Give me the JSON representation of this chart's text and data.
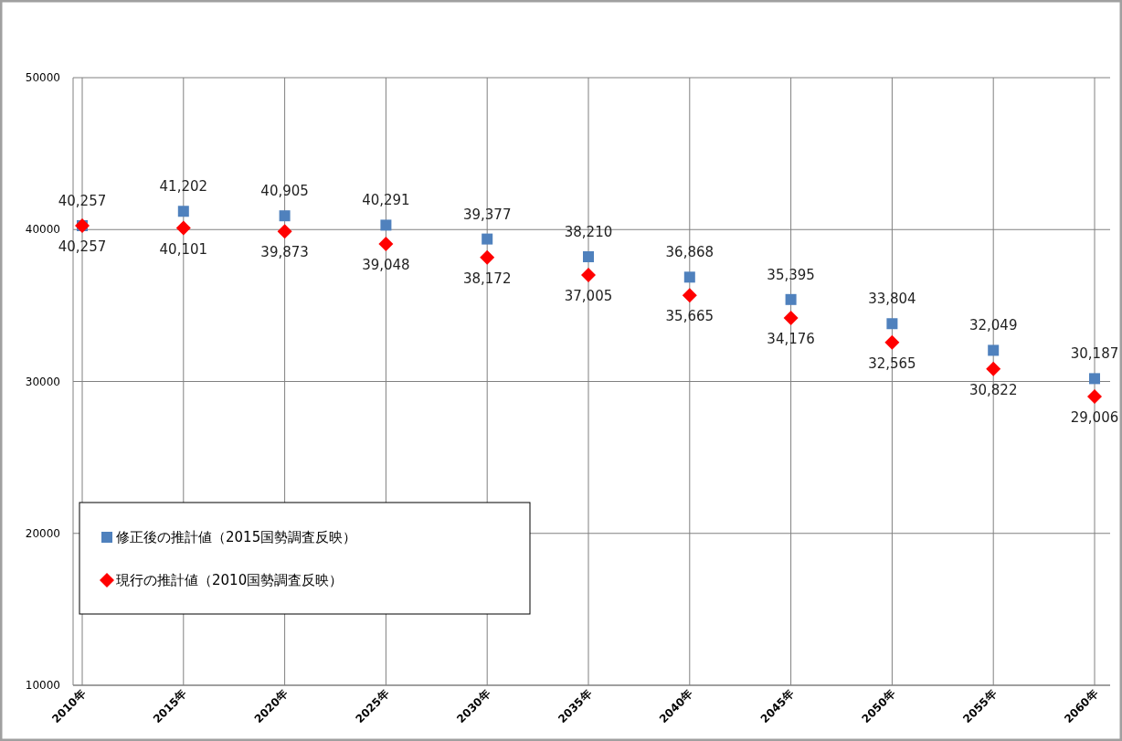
{
  "chart_data": {
    "type": "scatter",
    "categories": [
      "2010年",
      "2015年",
      "2020年",
      "2025年",
      "2030年",
      "2035年",
      "2040年",
      "2045年",
      "2050年",
      "2055年",
      "2060年"
    ],
    "series": [
      {
        "name": "修正後の推計値（2015国勢調査反映）",
        "color": "#4f81bd",
        "marker": "square",
        "values": [
          40257,
          41202,
          40905,
          40291,
          39377,
          38210,
          36868,
          35395,
          33804,
          32049,
          30187
        ],
        "value_labels": [
          "40,257",
          "41,202",
          "40,905",
          "40,291",
          "39,377",
          "38,210",
          "36,868",
          "35,395",
          "33,804",
          "32,049",
          "30,187"
        ]
      },
      {
        "name": "現行の推計値（2010国勢調査反映）",
        "color": "#ff0000",
        "marker": "diamond",
        "values": [
          40257,
          40101,
          39873,
          39048,
          38172,
          37005,
          35665,
          34176,
          32565,
          30822,
          29006
        ],
        "value_labels": [
          "40,257",
          "40,101",
          "39,873",
          "39,048",
          "38,172",
          "37,005",
          "35,665",
          "34,176",
          "32,565",
          "30,822",
          "29,006"
        ]
      }
    ],
    "ylim": [
      10000,
      50000
    ],
    "yticks": [
      10000,
      20000,
      30000,
      40000,
      50000
    ],
    "grid": true,
    "legend": "bottom left"
  }
}
